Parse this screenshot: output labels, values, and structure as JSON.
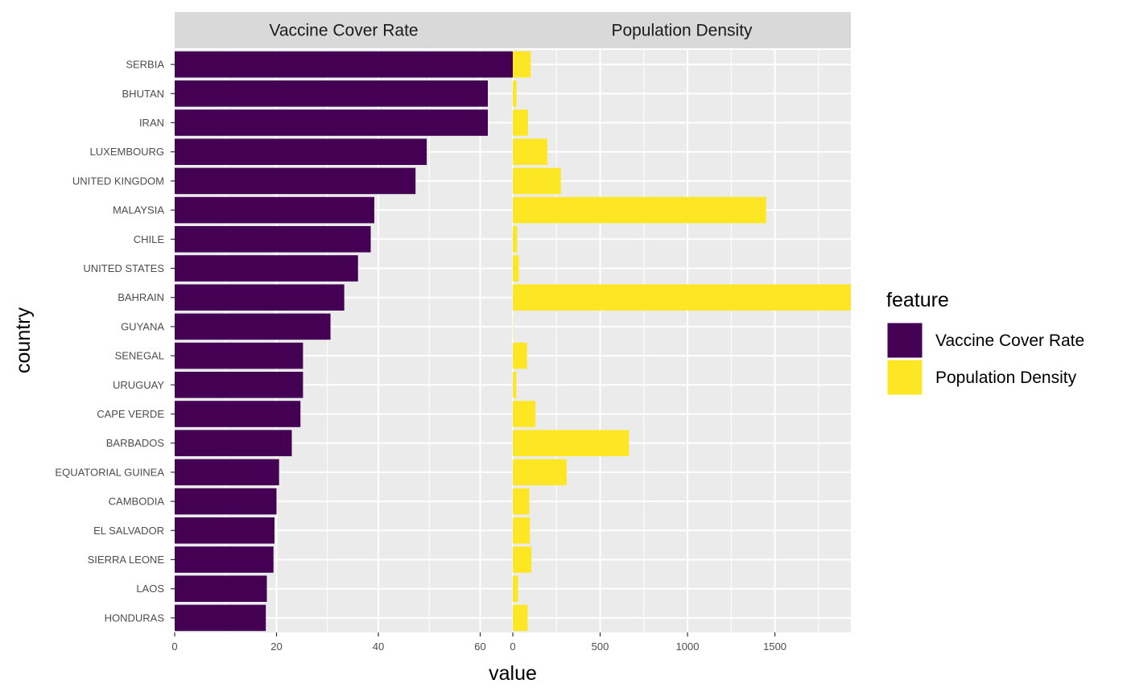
{
  "chart_data": {
    "type": "bar",
    "orientation": "horizontal",
    "layout": "faceted",
    "xlabel": "value",
    "ylabel": "country",
    "grid": true,
    "legend": {
      "title": "feature",
      "placement": "right"
    },
    "categories": [
      "SERBIA",
      "BHUTAN",
      "IRAN",
      "LUXEMBOURG",
      "UNITED KINGDOM",
      "MALAYSIA",
      "CHILE",
      "UNITED STATES",
      "BAHRAIN",
      "GUYANA",
      "SENEGAL",
      "URUGUAY",
      "CAPE VERDE",
      "BARBADOS",
      "EQUATORIAL GUINEA",
      "CAMBODIA",
      "EL SALVADOR",
      "SIERRA LEONE",
      "LAOS",
      "HONDURAS"
    ],
    "panels": [
      {
        "title": "Vaccine Cover Rate",
        "color": "#440154",
        "xlim": [
          0,
          66.4
        ],
        "ticks": [
          0,
          20,
          40,
          60
        ],
        "values": [
          66.4,
          61.5,
          61.5,
          49.5,
          47.3,
          39.2,
          38.5,
          36.0,
          33.3,
          30.6,
          25.2,
          25.2,
          24.7,
          23.0,
          20.5,
          20.0,
          19.6,
          19.4,
          18.1,
          17.9
        ]
      },
      {
        "title": "Population Density",
        "color": "#fde725",
        "xlim": [
          0,
          1935
        ],
        "ticks": [
          0,
          500,
          1000,
          1500
        ],
        "values": [
          103,
          21,
          87,
          198,
          275,
          1450,
          25,
          35,
          1935,
          2,
          82,
          20,
          130,
          665,
          308,
          95,
          98,
          107,
          30,
          85
        ]
      }
    ]
  }
}
